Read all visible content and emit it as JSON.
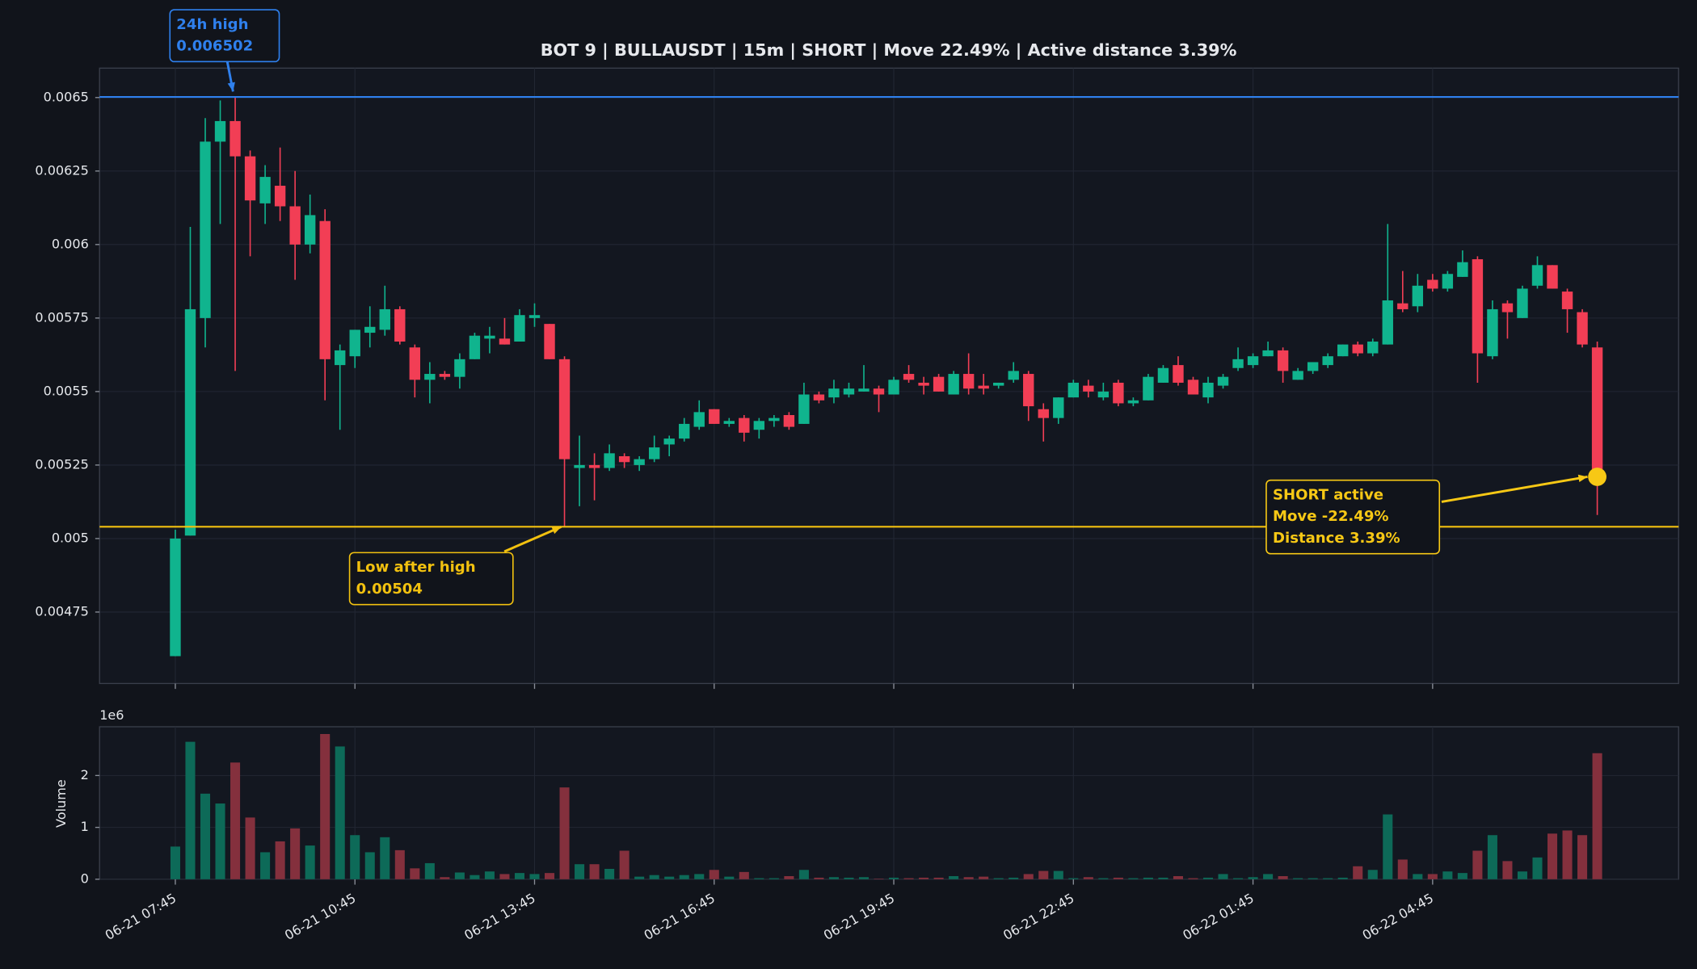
{
  "chart_data": {
    "type": "candlestick",
    "title": "BOT 9 | BULLAUSDT | 15m | SHORT | Move 22.49% | Active distance 3.39%",
    "x": [
      "06-21 07:45",
      "06-21 08:00",
      "06-21 08:15",
      "06-21 08:30",
      "06-21 08:45",
      "06-21 09:00",
      "06-21 09:15",
      "06-21 09:30",
      "06-21 09:45",
      "06-21 10:00",
      "06-21 10:15",
      "06-21 10:30",
      "06-21 10:45",
      "06-21 11:00",
      "06-21 11:15",
      "06-21 11:30",
      "06-21 11:45",
      "06-21 12:00",
      "06-21 12:15",
      "06-21 12:30",
      "06-21 12:45",
      "06-21 13:00",
      "06-21 13:15",
      "06-21 13:30",
      "06-21 13:45",
      "06-21 14:00",
      "06-21 14:15",
      "06-21 14:30",
      "06-21 14:45",
      "06-21 15:00",
      "06-21 15:15",
      "06-21 15:30",
      "06-21 15:45",
      "06-21 16:00",
      "06-21 16:15",
      "06-21 16:30",
      "06-21 16:45",
      "06-21 17:00",
      "06-21 17:15",
      "06-21 17:30",
      "06-21 17:45",
      "06-21 18:00",
      "06-21 18:15",
      "06-21 18:30",
      "06-21 18:45",
      "06-21 19:00",
      "06-21 19:15",
      "06-21 19:30",
      "06-21 19:45",
      "06-21 20:00",
      "06-21 20:15",
      "06-21 20:30",
      "06-21 20:45",
      "06-21 21:00",
      "06-21 21:15",
      "06-21 21:30",
      "06-21 21:45",
      "06-21 22:00",
      "06-21 22:15",
      "06-21 22:30",
      "06-21 22:45",
      "06-21 23:00",
      "06-21 23:15",
      "06-21 23:30",
      "06-21 23:45",
      "06-22 00:00",
      "06-22 00:15",
      "06-22 00:30",
      "06-22 00:45",
      "06-22 01:00",
      "06-22 01:15",
      "06-22 01:30",
      "06-22 01:45",
      "06-22 02:00",
      "06-22 02:15",
      "06-22 02:30",
      "06-22 02:45",
      "06-22 03:00",
      "06-22 03:15",
      "06-22 03:30",
      "06-22 03:45",
      "06-22 04:00",
      "06-22 04:15",
      "06-22 04:30",
      "06-22 04:45",
      "06-22 05:00",
      "06-22 05:15",
      "06-22 05:30",
      "06-22 05:45",
      "06-22 06:00",
      "06-22 06:15",
      "06-22 06:30",
      "06-22 06:45",
      "06-22 07:00",
      "06-22 07:15",
      "06-22 07:30"
    ],
    "xticks": [
      "06-21 07:45",
      "06-21 10:45",
      "06-21 13:45",
      "06-21 16:45",
      "06-21 19:45",
      "06-21 22:45",
      "06-22 01:45",
      "06-22 04:45"
    ],
    "open": [
      0.0046,
      0.00501,
      0.00575,
      0.00635,
      0.00642,
      0.0063,
      0.00614,
      0.0062,
      0.00613,
      0.006,
      0.00608,
      0.00559,
      0.00562,
      0.0057,
      0.00571,
      0.00578,
      0.00565,
      0.00554,
      0.00556,
      0.00555,
      0.00561,
      0.00568,
      0.00568,
      0.00567,
      0.00575,
      0.00573,
      0.00561,
      0.00524,
      0.00525,
      0.00524,
      0.00528,
      0.00525,
      0.00527,
      0.00532,
      0.00534,
      0.00538,
      0.00544,
      0.00539,
      0.00541,
      0.00537,
      0.0054,
      0.00542,
      0.00539,
      0.00549,
      0.00548,
      0.00549,
      0.0055,
      0.00551,
      0.00549,
      0.00556,
      0.00553,
      0.00555,
      0.00549,
      0.00556,
      0.00552,
      0.00552,
      0.00554,
      0.00556,
      0.00544,
      0.00541,
      0.00548,
      0.00552,
      0.00548,
      0.00553,
      0.00546,
      0.00547,
      0.00553,
      0.00559,
      0.00554,
      0.00548,
      0.00552,
      0.00558,
      0.00559,
      0.00562,
      0.00564,
      0.00554,
      0.00557,
      0.00559,
      0.00562,
      0.00566,
      0.00563,
      0.00566,
      0.0058,
      0.00579,
      0.00588,
      0.00585,
      0.00589,
      0.00595,
      0.00562,
      0.0058,
      0.00575,
      0.00586,
      0.00593,
      0.00584,
      0.00577,
      0.00565
    ],
    "high": [
      0.00503,
      0.00606,
      0.00643,
      0.00649,
      0.006502,
      0.00632,
      0.00627,
      0.00633,
      0.00625,
      0.00617,
      0.00612,
      0.00566,
      0.00571,
      0.00579,
      0.00586,
      0.00579,
      0.00566,
      0.0056,
      0.00557,
      0.00563,
      0.0057,
      0.00572,
      0.00575,
      0.00578,
      0.0058,
      0.00573,
      0.00562,
      0.00535,
      0.00529,
      0.00532,
      0.00529,
      0.00528,
      0.00535,
      0.00535,
      0.00541,
      0.00547,
      0.00544,
      0.00541,
      0.00542,
      0.00541,
      0.00542,
      0.00543,
      0.00553,
      0.0055,
      0.00554,
      0.00553,
      0.00559,
      0.00552,
      0.00555,
      0.00559,
      0.00555,
      0.00556,
      0.00557,
      0.00563,
      0.00556,
      0.00553,
      0.0056,
      0.00557,
      0.00546,
      0.00548,
      0.00554,
      0.00554,
      0.00553,
      0.00554,
      0.00548,
      0.00556,
      0.00559,
      0.00562,
      0.00555,
      0.00555,
      0.00556,
      0.00565,
      0.00563,
      0.00567,
      0.00565,
      0.00558,
      0.0056,
      0.00563,
      0.00566,
      0.00567,
      0.00568,
      0.00607,
      0.00591,
      0.0059,
      0.0059,
      0.00591,
      0.00598,
      0.00596,
      0.00581,
      0.00581,
      0.00586,
      0.00596,
      0.00593,
      0.00585,
      0.00578,
      0.00567
    ],
    "low": [
      0.0046,
      0.00501,
      0.00565,
      0.00607,
      0.00557,
      0.00596,
      0.00607,
      0.00608,
      0.00588,
      0.00597,
      0.00547,
      0.00537,
      0.00558,
      0.00565,
      0.00569,
      0.00566,
      0.00548,
      0.00546,
      0.00554,
      0.00551,
      0.00561,
      0.00563,
      0.00566,
      0.00567,
      0.00572,
      0.00561,
      0.00504,
      0.00511,
      0.00513,
      0.00523,
      0.00524,
      0.00523,
      0.00526,
      0.00528,
      0.00533,
      0.00537,
      0.00539,
      0.00538,
      0.00533,
      0.00534,
      0.00538,
      0.00537,
      0.00539,
      0.00546,
      0.00546,
      0.00548,
      0.0055,
      0.00543,
      0.00549,
      0.00553,
      0.00549,
      0.0055,
      0.00549,
      0.00549,
      0.00549,
      0.00551,
      0.00553,
      0.0054,
      0.00533,
      0.00539,
      0.00548,
      0.00548,
      0.00547,
      0.00545,
      0.00545,
      0.00547,
      0.00553,
      0.00552,
      0.00549,
      0.00546,
      0.00551,
      0.00557,
      0.00558,
      0.00562,
      0.00553,
      0.00554,
      0.00556,
      0.00558,
      0.00562,
      0.00562,
      0.00562,
      0.00566,
      0.00577,
      0.00577,
      0.00584,
      0.00584,
      0.00589,
      0.00553,
      0.00561,
      0.00568,
      0.00575,
      0.00585,
      0.00585,
      0.0057,
      0.00565,
      0.00508
    ],
    "close": [
      0.005,
      0.00578,
      0.00635,
      0.00642,
      0.0063,
      0.00615,
      0.00623,
      0.00613,
      0.006,
      0.0061,
      0.00561,
      0.00564,
      0.00571,
      0.00572,
      0.00578,
      0.00567,
      0.00554,
      0.00556,
      0.00555,
      0.00561,
      0.00569,
      0.00569,
      0.00566,
      0.00576,
      0.00576,
      0.00561,
      0.00527,
      0.00525,
      0.00524,
      0.00529,
      0.00526,
      0.00527,
      0.00531,
      0.00534,
      0.00539,
      0.00543,
      0.00539,
      0.0054,
      0.00536,
      0.0054,
      0.00541,
      0.00538,
      0.00549,
      0.00547,
      0.00551,
      0.00551,
      0.00551,
      0.00549,
      0.00554,
      0.00554,
      0.00552,
      0.0055,
      0.00556,
      0.00551,
      0.00551,
      0.00553,
      0.00557,
      0.00545,
      0.00541,
      0.00548,
      0.00553,
      0.0055,
      0.0055,
      0.00546,
      0.00547,
      0.00555,
      0.00558,
      0.00553,
      0.00549,
      0.00553,
      0.00555,
      0.00561,
      0.00562,
      0.00564,
      0.00557,
      0.00557,
      0.0056,
      0.00562,
      0.00566,
      0.00563,
      0.00567,
      0.00581,
      0.00578,
      0.00586,
      0.00585,
      0.0059,
      0.00594,
      0.00563,
      0.00578,
      0.00577,
      0.00585,
      0.00593,
      0.00585,
      0.00578,
      0.00566,
      0.00521
    ],
    "volume": [
      0.63,
      2.65,
      1.65,
      1.46,
      2.25,
      1.19,
      0.52,
      0.73,
      0.98,
      0.65,
      2.8,
      2.56,
      0.85,
      0.52,
      0.81,
      0.56,
      0.21,
      0.31,
      0.04,
      0.13,
      0.08,
      0.15,
      0.1,
      0.12,
      0.1,
      0.12,
      1.77,
      0.29,
      0.29,
      0.2,
      0.55,
      0.05,
      0.08,
      0.05,
      0.08,
      0.1,
      0.18,
      0.05,
      0.14,
      0.02,
      0.02,
      0.06,
      0.18,
      0.03,
      0.04,
      0.03,
      0.04,
      0.01,
      0.03,
      0.02,
      0.03,
      0.03,
      0.06,
      0.04,
      0.05,
      0.02,
      0.03,
      0.1,
      0.16,
      0.16,
      0.02,
      0.04,
      0.02,
      0.03,
      0.02,
      0.03,
      0.03,
      0.06,
      0.02,
      0.03,
      0.1,
      0.02,
      0.04,
      0.1,
      0.06,
      0.02,
      0.02,
      0.02,
      0.03,
      0.25,
      0.18,
      1.25,
      0.38,
      0.1,
      0.1,
      0.15,
      0.12,
      0.55,
      0.85,
      0.35,
      0.15,
      0.42,
      0.88,
      0.94,
      0.85,
      2.43
    ],
    "up_color": "#10b48e",
    "down_color": "#f23e55",
    "volume_up_color": "#0d6a58",
    "volume_down_color": "#84303d",
    "ylim": [
      0.004507,
      0.0066
    ],
    "yticks": [
      0.00475,
      0.005,
      0.00525,
      0.0055,
      0.00575,
      0.006,
      0.00625,
      0.0065
    ],
    "volume_label": "Volume",
    "volume_offset_label": "1e6",
    "volume_ylim": [
      0,
      2.94
    ],
    "volume_yticks": [
      0,
      1,
      2
    ],
    "grid": true,
    "annotations": [
      {
        "lines": [
          "24h high",
          "0.006502"
        ],
        "value": 0.006502,
        "color": "#2f80ed",
        "hline": true
      },
      {
        "lines": [
          "Low after high",
          "0.00504"
        ],
        "value": 0.00504,
        "color": "#f2c10f",
        "hline": true
      },
      {
        "lines": [
          "SHORT active",
          "Move -22.49%",
          "Distance 3.39%"
        ],
        "value": 0.00521,
        "color": "#f7c815",
        "hline": false
      }
    ]
  }
}
